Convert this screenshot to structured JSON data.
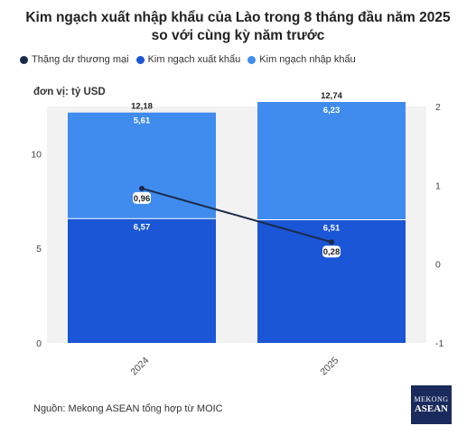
{
  "title": "Kim ngạch xuất nhập khẩu của Lào trong 8 tháng đầu năm 2025 so với cùng kỳ năm trước",
  "unit_label": "đơn vị: tỷ USD",
  "source": "Nguồn: Mekong ASEAN tổng hợp từ MOIC",
  "logo": {
    "line1": "MEKONG",
    "line2": "ASEAN"
  },
  "colors": {
    "balance": "#1b2a4a",
    "export": "#1a56d6",
    "import": "#3f8cee"
  },
  "chart_data": {
    "type": "bar",
    "stacked": true,
    "categories": [
      "2024",
      "2025"
    ],
    "series": [
      {
        "name": "Thặng dư thương mại",
        "type": "line",
        "axis": "right",
        "values": [
          0.96,
          0.28
        ],
        "labels": [
          "0,96",
          "0,28"
        ]
      },
      {
        "name": "Kim ngạch xuất khẩu",
        "type": "bar",
        "axis": "left",
        "values": [
          6.57,
          6.51
        ],
        "labels": [
          "6,57",
          "6,51"
        ]
      },
      {
        "name": "Kim ngạch nhập khẩu",
        "type": "bar",
        "axis": "left",
        "values": [
          5.61,
          6.23
        ],
        "labels": [
          "5,61",
          "6,23"
        ]
      }
    ],
    "totals": [
      12.18,
      12.74
    ],
    "total_labels": [
      "12,18",
      "12,74"
    ],
    "y_left": {
      "min": 0,
      "max": 12.5,
      "ticks": [
        0,
        5,
        10
      ],
      "tick_labels": [
        "0",
        "5",
        "10"
      ]
    },
    "y_right": {
      "min": -1,
      "max": 2,
      "ticks": [
        -1,
        0,
        1,
        2
      ],
      "tick_labels": [
        "-1",
        "0",
        "1",
        "2"
      ]
    },
    "legend_position": "top-left",
    "grid": false
  }
}
